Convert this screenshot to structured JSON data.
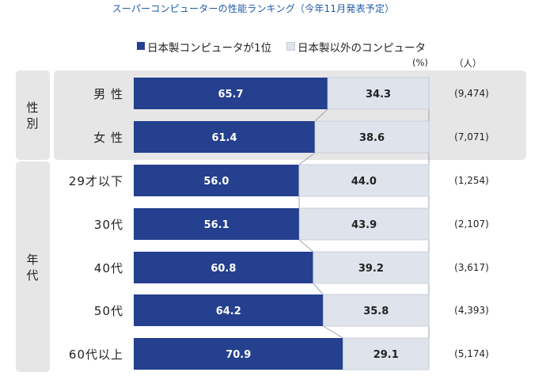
{
  "title": "スーパーコンピューターの性能ランキング（今年11月発表予定）",
  "legend": [
    {
      "label": "日本製コンピュータが1位",
      "color": "#25408f"
    },
    {
      "label": "日本製以外のコンピュータ",
      "color": "#dfe3ec"
    }
  ],
  "units": {
    "percent": "(%)",
    "people": "（人）"
  },
  "groups": [
    {
      "label": "性別"
    },
    {
      "label": "年代"
    }
  ],
  "chart_data": {
    "type": "bar",
    "stacked": true,
    "orientation": "horizontal",
    "title": "スーパーコンピューターの性能ランキング（今年11月発表予定）",
    "xlim": [
      0,
      100
    ],
    "categories": [
      "男 性",
      "女 性",
      "29才以下",
      "30代",
      "40代",
      "50代",
      "60代以上"
    ],
    "series": [
      {
        "name": "日本製コンピュータが1位",
        "values": [
          65.7,
          61.4,
          56.0,
          56.1,
          60.8,
          64.2,
          70.9
        ],
        "labels": [
          "65.7",
          "61.4",
          "56.0",
          "56.1",
          "60.8",
          "64.2",
          "70.9"
        ]
      },
      {
        "name": "日本製以外のコンピュータ",
        "values": [
          34.3,
          38.6,
          44.0,
          43.9,
          39.2,
          35.8,
          29.1
        ],
        "labels": [
          "34.3",
          "38.6",
          "44.0",
          "43.9",
          "39.2",
          "35.8",
          "29.1"
        ]
      }
    ],
    "counts": [
      "(9,474)",
      "(7,071)",
      "(1,254)",
      "(2,107)",
      "(3,617)",
      "(4,393)",
      "(5,174)"
    ]
  }
}
